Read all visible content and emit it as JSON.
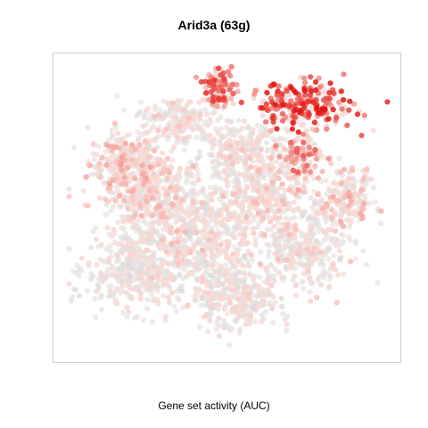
{
  "chart_data": {
    "type": "scatter",
    "title": "Arid3a (63g)",
    "xlabel": "Gene set activity (AUC)",
    "ylabel": "",
    "axes_visible": false,
    "grid": false,
    "legend": "none",
    "colors": {
      "low": "#d9d9d9",
      "mid": "#fcd9d4",
      "high": "#e3140f",
      "box": "#cccccc"
    },
    "value_range": [
      0,
      1
    ],
    "clusters": [
      {
        "center": [
          -0.62,
          0.3
        ],
        "spread": [
          0.14,
          0.14
        ],
        "n": 320,
        "activity": 0.3
      },
      {
        "center": [
          -0.45,
          0.05
        ],
        "spread": [
          0.18,
          0.2
        ],
        "n": 420,
        "activity": 0.25
      },
      {
        "center": [
          -0.55,
          -0.45
        ],
        "spread": [
          0.2,
          0.16
        ],
        "n": 380,
        "activity": 0.12
      },
      {
        "center": [
          -0.15,
          -0.2
        ],
        "spread": [
          0.2,
          0.22
        ],
        "n": 420,
        "activity": 0.18
      },
      {
        "center": [
          0.05,
          -0.62
        ],
        "spread": [
          0.16,
          0.14
        ],
        "n": 300,
        "activity": 0.15
      },
      {
        "center": [
          0.45,
          -0.3
        ],
        "spread": [
          0.18,
          0.16
        ],
        "n": 320,
        "activity": 0.2
      },
      {
        "center": [
          0.7,
          0.05
        ],
        "spread": [
          0.12,
          0.14
        ],
        "n": 220,
        "activity": 0.28
      },
      {
        "center": [
          0.2,
          0.1
        ],
        "spread": [
          0.16,
          0.16
        ],
        "n": 300,
        "activity": 0.22
      },
      {
        "center": [
          0.05,
          0.4
        ],
        "spread": [
          0.16,
          0.12
        ],
        "n": 220,
        "activity": 0.2
      },
      {
        "center": [
          -0.3,
          0.6
        ],
        "spread": [
          0.14,
          0.1
        ],
        "n": 180,
        "activity": 0.18
      },
      {
        "center": [
          0.45,
          0.7
        ],
        "spread": [
          0.2,
          0.1
        ],
        "n": 260,
        "activity": 0.8
      },
      {
        "center": [
          -0.05,
          0.82
        ],
        "spread": [
          0.06,
          0.08
        ],
        "n": 110,
        "activity": 0.7
      },
      {
        "center": [
          0.42,
          0.35
        ],
        "spread": [
          0.1,
          0.1
        ],
        "n": 120,
        "activity": 0.55
      }
    ]
  }
}
